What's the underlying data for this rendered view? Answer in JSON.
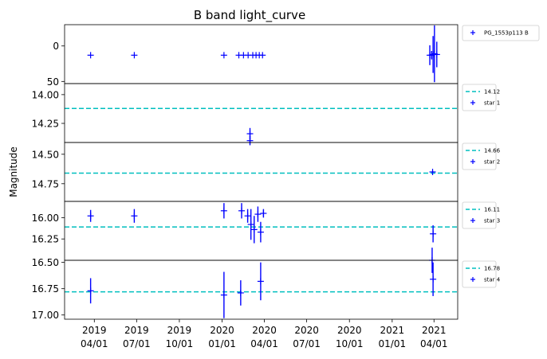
{
  "chart_data": {
    "type": "scatter",
    "title": "B band light_curve",
    "ylabel": "Magnitude",
    "xlabel": "",
    "x_axis": {
      "type": "date",
      "range": [
        "2019-01-27",
        "2021-05-22"
      ],
      "ticks": [
        {
          "date": "2019-04-01",
          "label": [
            "2019",
            "04/01"
          ]
        },
        {
          "date": "2019-07-01",
          "label": [
            "2019",
            "07/01"
          ]
        },
        {
          "date": "2019-10-01",
          "label": [
            "2019",
            "10/01"
          ]
        },
        {
          "date": "2020-01-01",
          "label": [
            "2020",
            "01/01"
          ]
        },
        {
          "date": "2020-04-01",
          "label": [
            "2020",
            "04/01"
          ]
        },
        {
          "date": "2020-07-01",
          "label": [
            "2020",
            "07/01"
          ]
        },
        {
          "date": "2020-10-01",
          "label": [
            "2020",
            "10/01"
          ]
        },
        {
          "date": "2021-01-01",
          "label": [
            "2021",
            "01/01"
          ]
        },
        {
          "date": "2021-04-01",
          "label": [
            "2021",
            "04/01"
          ]
        }
      ]
    },
    "panels": [
      {
        "ylim": [
          53,
          -30
        ],
        "yticks": [
          {
            "v": 0,
            "label": "0"
          },
          {
            "v": 50,
            "label": "50"
          }
        ],
        "reference": null,
        "series": {
          "name": "PG_1553p113 B",
          "color": "#0000ff",
          "points": [
            {
              "x": "2019-03-24",
              "y": 13,
              "err": 0
            },
            {
              "x": "2019-06-26",
              "y": 13,
              "err": 0
            },
            {
              "x": "2020-01-05",
              "y": 13,
              "err": 0
            },
            {
              "x": "2020-02-06",
              "y": 13,
              "err": 0
            },
            {
              "x": "2020-02-16",
              "y": 13,
              "err": 0
            },
            {
              "x": "2020-02-26",
              "y": 13,
              "err": 0
            },
            {
              "x": "2020-03-07",
              "y": 13,
              "err": 0
            },
            {
              "x": "2020-03-14",
              "y": 13,
              "err": 0
            },
            {
              "x": "2020-03-21",
              "y": 13,
              "err": 0
            },
            {
              "x": "2020-03-28",
              "y": 13,
              "err": 0
            },
            {
              "x": "2021-03-23",
              "y": 13,
              "err": 14
            },
            {
              "x": "2021-03-27",
              "y": 13,
              "err": 6
            },
            {
              "x": "2021-03-30",
              "y": 12,
              "err": 26
            },
            {
              "x": "2021-04-02",
              "y": 11,
              "err": 40
            },
            {
              "x": "2021-04-07",
              "y": 12,
              "err": 18
            }
          ]
        }
      },
      {
        "ylim": [
          14.416,
          13.904
        ],
        "yticks": [
          {
            "v": 14.0,
            "label": "14.00"
          },
          {
            "v": 14.25,
            "label": "14.25"
          }
        ],
        "reference": {
          "value": 14.12,
          "label": "14.12",
          "color": "#00bfbf"
        },
        "series": {
          "name": "star 1",
          "color": "#0000ff",
          "points": [
            {
              "x": "2020-03-01",
              "y": 14.34,
              "err": 0.05
            },
            {
              "x": "2020-03-01",
              "y": 14.4,
              "err": 0.04
            }
          ]
        }
      },
      {
        "ylim": [
          14.9,
          14.4
        ],
        "yticks": [
          {
            "v": 14.5,
            "label": "14.50"
          },
          {
            "v": 14.75,
            "label": "14.75"
          }
        ],
        "reference": {
          "value": 14.66,
          "label": "14.66",
          "color": "#00bfbf"
        },
        "series": {
          "name": "star 2",
          "color": "#0000ff",
          "points": [
            {
              "x": "2021-03-29",
              "y": 14.65,
              "err": 0.01
            }
          ]
        }
      },
      {
        "ylim": [
          16.5,
          15.81
        ],
        "yticks": [
          {
            "v": 16.0,
            "label": "16.00"
          },
          {
            "v": 16.25,
            "label": "16.25"
          }
        ],
        "reference": {
          "value": 16.11,
          "label": "16.11",
          "color": "#00bfbf"
        },
        "series": {
          "name": "star 3",
          "color": "#0000ff",
          "points": [
            {
              "x": "2019-03-24",
              "y": 15.98,
              "err": 0.07
            },
            {
              "x": "2019-06-26",
              "y": 15.98,
              "err": 0.08
            },
            {
              "x": "2020-01-05",
              "y": 15.92,
              "err": 0.09
            },
            {
              "x": "2020-02-12",
              "y": 15.92,
              "err": 0.09
            },
            {
              "x": "2020-02-25",
              "y": 15.98,
              "err": 0.08
            },
            {
              "x": "2020-03-03",
              "y": 16.08,
              "err": 0.18
            },
            {
              "x": "2020-03-10",
              "y": 16.14,
              "err": 0.16
            },
            {
              "x": "2020-03-18",
              "y": 15.96,
              "err": 0.09
            },
            {
              "x": "2020-03-24",
              "y": 16.17,
              "err": 0.12
            },
            {
              "x": "2020-03-30",
              "y": 15.95,
              "err": 0.05
            },
            {
              "x": "2021-03-30",
              "y": 16.19,
              "err": 0.1
            }
          ]
        }
      },
      {
        "ylim": [
          17.04,
          16.48
        ],
        "yticks": [
          {
            "v": 16.5,
            "label": "16.50"
          },
          {
            "v": 16.75,
            "label": "16.75"
          },
          {
            "v": 17.0,
            "label": "17.00"
          }
        ],
        "reference": {
          "value": 16.78,
          "label": "16.78",
          "color": "#00bfbf"
        },
        "series": {
          "name": "star 4",
          "color": "#0000ff",
          "points": [
            {
              "x": "2019-03-24",
              "y": 16.77,
              "err": 0.12
            },
            {
              "x": "2020-01-05",
              "y": 16.81,
              "err": 0.22
            },
            {
              "x": "2020-02-10",
              "y": 16.79,
              "err": 0.12
            },
            {
              "x": "2020-03-24",
              "y": 16.68,
              "err": 0.18
            },
            {
              "x": "2021-03-28",
              "y": 16.48,
              "err": 0.12
            },
            {
              "x": "2021-03-30",
              "y": 16.66,
              "err": 0.16
            }
          ]
        }
      }
    ]
  }
}
